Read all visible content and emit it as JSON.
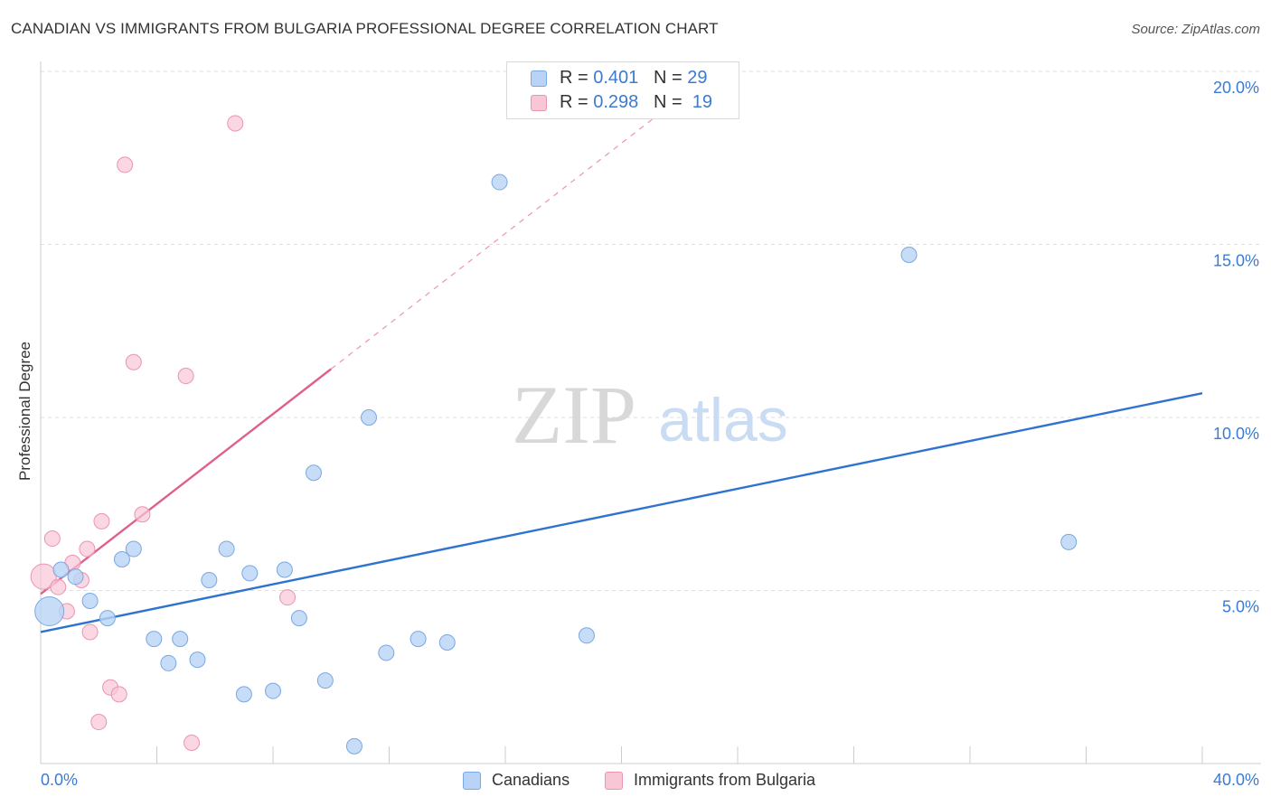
{
  "title": "CANADIAN VS IMMIGRANTS FROM BULGARIA PROFESSIONAL DEGREE CORRELATION CHART",
  "source": "Source: ZipAtlas.com",
  "watermark": {
    "zip": "ZIP",
    "atlas": "atlas"
  },
  "legend": {
    "canadians": {
      "r_label": "R = ",
      "r": "0.401",
      "n_label": "N = ",
      "n": "29"
    },
    "bulgaria": {
      "r_label": "R = ",
      "r": "0.298",
      "n_label": "N = ",
      "n": "19"
    }
  },
  "colors": {
    "blue_fill": "#b8d3f5",
    "blue_stroke": "#7aa8e0",
    "blue_line": "#2f73d0",
    "pink_fill": "#f8c6d5",
    "pink_stroke": "#eb94b0",
    "pink_line": "#e0608a",
    "grid": "#dedede",
    "axis_text": "#3a7bd5"
  },
  "chart_data": {
    "type": "scatter",
    "xlabel": "",
    "ylabel": "Professional Degree",
    "xlim": [
      0,
      40
    ],
    "ylim": [
      0,
      20
    ],
    "x_tick_labels": [
      "0.0%",
      "40.0%"
    ],
    "y_ticks": [
      5,
      10,
      15,
      20
    ],
    "y_tick_labels": [
      "5.0%",
      "10.0%",
      "15.0%",
      "20.0%"
    ],
    "grid": true,
    "series": [
      {
        "name": "Canadians",
        "points": [
          [
            0.3,
            4.4
          ],
          [
            0.7,
            5.6
          ],
          [
            1.2,
            5.4
          ],
          [
            1.7,
            4.7
          ],
          [
            2.3,
            4.2
          ],
          [
            2.8,
            5.9
          ],
          [
            3.2,
            6.2
          ],
          [
            3.9,
            3.6
          ],
          [
            4.4,
            2.9
          ],
          [
            4.8,
            3.6
          ],
          [
            5.4,
            3.0
          ],
          [
            5.8,
            5.3
          ],
          [
            6.4,
            6.2
          ],
          [
            7.0,
            2.0
          ],
          [
            7.2,
            5.5
          ],
          [
            8.0,
            2.1
          ],
          [
            8.4,
            5.6
          ],
          [
            8.9,
            4.2
          ],
          [
            9.4,
            8.4
          ],
          [
            9.8,
            2.4
          ],
          [
            10.8,
            0.5
          ],
          [
            11.3,
            10.0
          ],
          [
            11.9,
            3.2
          ],
          [
            13.0,
            3.6
          ],
          [
            14.0,
            3.5
          ],
          [
            15.8,
            16.8
          ],
          [
            18.8,
            3.7
          ],
          [
            29.9,
            14.7
          ],
          [
            35.4,
            6.4
          ]
        ],
        "trend": {
          "x": [
            0,
            40
          ],
          "y": [
            3.8,
            10.7
          ]
        }
      },
      {
        "name": "Immigrants from Bulgaria",
        "points": [
          [
            0.1,
            5.4
          ],
          [
            0.4,
            6.5
          ],
          [
            0.6,
            5.1
          ],
          [
            0.9,
            4.4
          ],
          [
            1.1,
            5.8
          ],
          [
            1.4,
            5.3
          ],
          [
            1.6,
            6.2
          ],
          [
            1.7,
            3.8
          ],
          [
            2.0,
            1.2
          ],
          [
            2.1,
            7.0
          ],
          [
            2.4,
            2.2
          ],
          [
            2.7,
            2.0
          ],
          [
            2.9,
            17.3
          ],
          [
            3.2,
            11.6
          ],
          [
            3.5,
            7.2
          ],
          [
            5.0,
            11.2
          ],
          [
            5.2,
            0.6
          ],
          [
            6.7,
            18.5
          ],
          [
            8.5,
            4.8
          ]
        ],
        "trend": {
          "x": [
            0,
            10
          ],
          "y": [
            4.9,
            11.4
          ]
        },
        "trend_extension": {
          "x": [
            10,
            21.8
          ],
          "y": [
            11.4,
            19.1
          ]
        }
      }
    ]
  },
  "bottom_legend": {
    "canadians": "Canadians",
    "bulgaria": "Immigrants from Bulgaria"
  }
}
